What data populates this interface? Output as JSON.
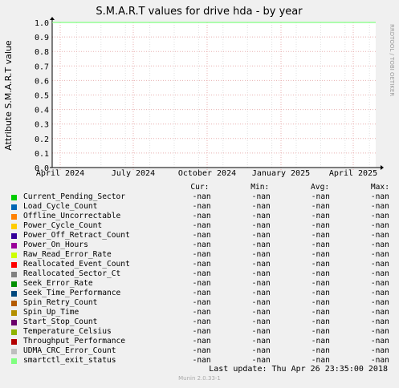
{
  "chart_data": {
    "type": "line",
    "title": "S.M.A.R.T values for drive hda - by year",
    "ylabel": "Attribute S.M.A.R.T value",
    "ylim": [
      0,
      1.0
    ],
    "yticks": [
      "0.0",
      "0.1",
      "0.2",
      "0.3",
      "0.4",
      "0.5",
      "0.6",
      "0.7",
      "0.8",
      "0.9",
      "1.0"
    ],
    "xticks": [
      "April 2024",
      "July 2024",
      "October 2024",
      "January 2025",
      "April 2025"
    ],
    "xtick_values": [
      0,
      91,
      183,
      275,
      365
    ],
    "xrange": [
      -10,
      393
    ],
    "side_label": "RRDTOOL / TOBI OETIKER",
    "series": [
      {
        "name": "Current_Pending_Sector",
        "color": "#00cc00"
      },
      {
        "name": "Load_Cycle_Count",
        "color": "#0066b3"
      },
      {
        "name": "Offline_Uncorrectable",
        "color": "#ff8000"
      },
      {
        "name": "Power_Cycle_Count",
        "color": "#ffcc00"
      },
      {
        "name": "Power_Off_Retract_Count",
        "color": "#330099"
      },
      {
        "name": "Power_On_Hours",
        "color": "#990099"
      },
      {
        "name": "Raw_Read_Error_Rate",
        "color": "#ccff00"
      },
      {
        "name": "Reallocated_Event_Count",
        "color": "#ff0000"
      },
      {
        "name": "Reallocated_Sector_Ct",
        "color": "#808080"
      },
      {
        "name": "Seek_Error_Rate",
        "color": "#008f00"
      },
      {
        "name": "Seek_Time_Performance",
        "color": "#00487d"
      },
      {
        "name": "Spin_Retry_Count",
        "color": "#b35a00"
      },
      {
        "name": "Spin_Up_Time",
        "color": "#b38f00"
      },
      {
        "name": "Start_Stop_Count",
        "color": "#6b006b"
      },
      {
        "name": "Temperature_Celsius",
        "color": "#8fb300"
      },
      {
        "name": "Throughput_Performance",
        "color": "#b30000"
      },
      {
        "name": "UDMA_CRC_Error_Count",
        "color": "#bebebe"
      },
      {
        "name": "smartctl_exit_status",
        "color": "#80ff80"
      }
    ],
    "columns": [
      "Cur:",
      "Min:",
      "Avg:",
      "Max:"
    ],
    "value_text": "-nan",
    "threshold": {
      "y": 1.0,
      "color": "#80ff80"
    }
  },
  "footer": {
    "last_update": "Last update:  Thu Apr 26 23:35:00 2018",
    "munin": "Munin 2.0.33-1"
  }
}
